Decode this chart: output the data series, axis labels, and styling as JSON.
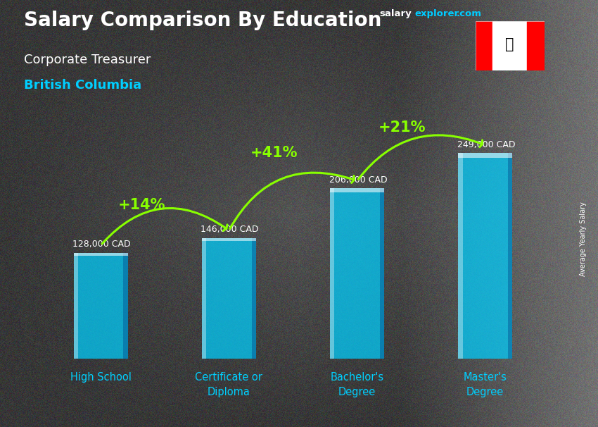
{
  "title": "Salary Comparison By Education",
  "subtitle": "Corporate Treasurer",
  "location": "British Columbia",
  "categories": [
    "High School",
    "Certificate or\nDiploma",
    "Bachelor's\nDegree",
    "Master's\nDegree"
  ],
  "values": [
    128000,
    146000,
    206000,
    249000
  ],
  "value_labels": [
    "128,000 CAD",
    "146,000 CAD",
    "206,000 CAD",
    "249,000 CAD"
  ],
  "pct_labels": [
    "+14%",
    "+41%",
    "+21%"
  ],
  "bar_color": "#00cfff",
  "bar_alpha": 0.72,
  "bg_dark": "#2a2e35",
  "title_color": "#ffffff",
  "subtitle_color": "#ffffff",
  "location_color": "#00cfff",
  "value_label_color": "#ffffff",
  "pct_color": "#88ff00",
  "arrow_color": "#88ff00",
  "xticklabel_color": "#00cfff",
  "ylabel": "Average Yearly Salary",
  "brand_salary_color": "#ffffff",
  "brand_explorer_color": "#00ccff",
  "brand_com_color": "#00ccff",
  "figsize": [
    8.5,
    6.06
  ],
  "dpi": 100,
  "ylim_max": 310000,
  "bar_width": 0.42,
  "bar_bottom": 0,
  "bar_positions": [
    0,
    1,
    2,
    3
  ]
}
